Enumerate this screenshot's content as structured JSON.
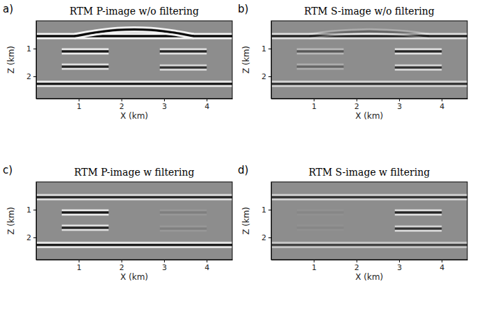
{
  "chart_data": [
    {
      "type": "image",
      "label": "a)",
      "title": "RTM P-image w/o filtering",
      "x_label": "X (km)",
      "y_label": "Z (km)",
      "xlim": [
        0,
        4.6
      ],
      "ylim": [
        0,
        2.8
      ],
      "xticks": [
        1,
        2,
        3,
        4
      ],
      "yticks": [
        1,
        2
      ],
      "reflectors": [
        {
          "x": [
            0,
            4.6
          ],
          "z": [
            0.55,
            0.55
          ],
          "amplitude": 1
        },
        {
          "x": [
            0.9,
            1.4,
            1.9,
            2.3,
            2.7,
            3.2,
            3.7
          ],
          "z": [
            0.55,
            0.42,
            0.33,
            0.31,
            0.33,
            0.42,
            0.55
          ],
          "amplitude": 1
        },
        {
          "x": [
            0.6,
            1.7
          ],
          "z": [
            1.1,
            1.1
          ],
          "amplitude": 0.9
        },
        {
          "x": [
            0.6,
            1.7
          ],
          "z": [
            1.65,
            1.65
          ],
          "amplitude": 0.8
        },
        {
          "x": [
            2.9,
            4.0
          ],
          "z": [
            1.1,
            1.1
          ],
          "amplitude": 0.8
        },
        {
          "x": [
            2.9,
            4.0
          ],
          "z": [
            1.68,
            1.68
          ],
          "amplitude": 0.7
        },
        {
          "x": [
            0,
            4.6
          ],
          "z": [
            2.27,
            2.27
          ],
          "amplitude": 0.9
        }
      ]
    },
    {
      "type": "image",
      "label": "b)",
      "title": "RTM S-image w/o filtering",
      "x_label": "X (km)",
      "y_label": "Z (km)",
      "xlim": [
        0,
        4.6
      ],
      "ylim": [
        0,
        2.8
      ],
      "xticks": [
        1,
        2,
        3,
        4
      ],
      "yticks": [
        1,
        2
      ],
      "reflectors": [
        {
          "x": [
            0,
            4.6
          ],
          "z": [
            0.55,
            0.55
          ],
          "amplitude": 0.8
        },
        {
          "x": [
            0.9,
            1.4,
            1.9,
            2.3,
            2.7,
            3.2,
            3.7
          ],
          "z": [
            0.55,
            0.45,
            0.4,
            0.38,
            0.4,
            0.45,
            0.55
          ],
          "amplitude": 0.3
        },
        {
          "x": [
            0.6,
            1.7
          ],
          "z": [
            1.1,
            1.1
          ],
          "amplitude": 0.4
        },
        {
          "x": [
            0.6,
            1.7
          ],
          "z": [
            1.65,
            1.65
          ],
          "amplitude": 0.3
        },
        {
          "x": [
            2.9,
            4.0
          ],
          "z": [
            1.1,
            1.1
          ],
          "amplitude": 0.8
        },
        {
          "x": [
            2.9,
            4.0
          ],
          "z": [
            1.68,
            1.68
          ],
          "amplitude": 0.7
        },
        {
          "x": [
            0,
            4.6
          ],
          "z": [
            2.27,
            2.27
          ],
          "amplitude": 0.7
        }
      ]
    },
    {
      "type": "image",
      "label": "c)",
      "title": "RTM P-image w filtering",
      "x_label": "X (km)",
      "y_label": "Z (km)",
      "xlim": [
        0,
        4.6
      ],
      "ylim": [
        0,
        2.8
      ],
      "xticks": [
        1,
        2,
        3,
        4
      ],
      "yticks": [
        1,
        2
      ],
      "reflectors": [
        {
          "x": [
            0,
            4.6
          ],
          "z": [
            0.55,
            0.55
          ],
          "amplitude": 0.8
        },
        {
          "x": [
            0.6,
            1.7
          ],
          "z": [
            1.1,
            1.1
          ],
          "amplitude": 0.9
        },
        {
          "x": [
            0.6,
            1.7
          ],
          "z": [
            1.65,
            1.65
          ],
          "amplitude": 0.8
        },
        {
          "x": [
            2.9,
            4.0
          ],
          "z": [
            1.1,
            1.1
          ],
          "amplitude": 0.1
        },
        {
          "x": [
            2.9,
            4.0
          ],
          "z": [
            1.68,
            1.68
          ],
          "amplitude": 0.1
        },
        {
          "x": [
            0,
            4.6
          ],
          "z": [
            2.27,
            2.27
          ],
          "amplitude": 0.9
        }
      ]
    },
    {
      "type": "image",
      "label": "d)",
      "title": "RTM S-image w filtering",
      "x_label": "X (km)",
      "y_label": "Z (km)",
      "xlim": [
        0,
        4.6
      ],
      "ylim": [
        0,
        2.8
      ],
      "xticks": [
        1,
        2,
        3,
        4
      ],
      "yticks": [
        1,
        2
      ],
      "reflectors": [
        {
          "x": [
            0,
            4.6
          ],
          "z": [
            0.55,
            0.55
          ],
          "amplitude": 0.7
        },
        {
          "x": [
            0.6,
            1.7
          ],
          "z": [
            1.1,
            1.1
          ],
          "amplitude": 0.05
        },
        {
          "x": [
            0.6,
            1.7
          ],
          "z": [
            1.65,
            1.65
          ],
          "amplitude": 0.05
        },
        {
          "x": [
            2.9,
            4.0
          ],
          "z": [
            1.1,
            1.1
          ],
          "amplitude": 0.8
        },
        {
          "x": [
            2.9,
            4.0
          ],
          "z": [
            1.68,
            1.68
          ],
          "amplitude": 0.7
        },
        {
          "x": [
            0,
            4.6
          ],
          "z": [
            2.27,
            2.27
          ],
          "amplitude": 0.6
        }
      ]
    }
  ]
}
